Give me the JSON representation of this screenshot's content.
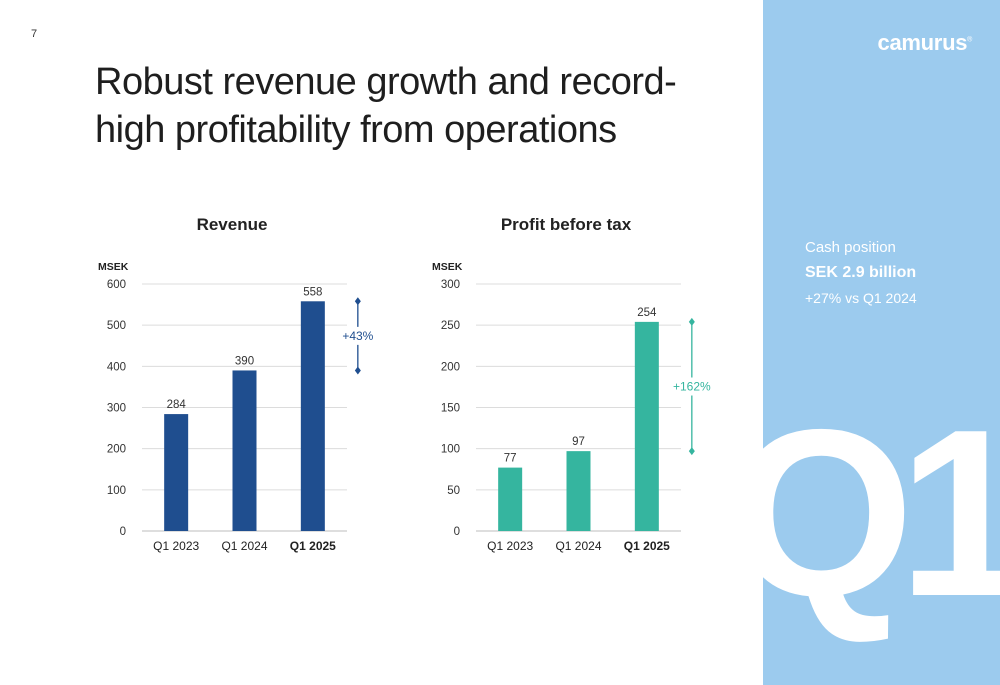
{
  "page_number": "7",
  "title": "Robust revenue growth and record-high profitability from operations",
  "logo_text": "camurus",
  "logo_mark": "®",
  "side_panel": {
    "cash_label": "Cash position",
    "cash_value": "SEK 2.9 billion",
    "cash_change": "+27% vs Q1 2024",
    "watermark": "Q1"
  },
  "colors": {
    "revenue_bar": "#1f4e8f",
    "profit_bar": "#35b59f",
    "panel": "#9ccbee"
  },
  "chart_data": [
    {
      "type": "bar",
      "title": "Revenue",
      "ylabel": "MSEK",
      "xlabel": "",
      "categories": [
        "Q1 2023",
        "Q1 2024",
        "Q1 2025"
      ],
      "bold_category": "Q1 2025",
      "values": [
        284,
        390,
        558
      ],
      "ylim": [
        0,
        600
      ],
      "yticks": [
        0,
        100,
        200,
        300,
        400,
        500,
        600
      ],
      "grid": true,
      "color": "#1f4e8f",
      "annotation": {
        "text": "+43%",
        "from": 390,
        "to": 558
      }
    },
    {
      "type": "bar",
      "title": "Profit before tax",
      "ylabel": "MSEK",
      "xlabel": "",
      "categories": [
        "Q1 2023",
        "Q1 2024",
        "Q1 2025"
      ],
      "bold_category": "Q1 2025",
      "values": [
        77,
        97,
        254
      ],
      "ylim": [
        0,
        300
      ],
      "yticks": [
        0,
        50,
        100,
        150,
        200,
        250,
        300
      ],
      "grid": true,
      "color": "#35b59f",
      "annotation": {
        "text": "+162%",
        "from": 97,
        "to": 254
      }
    }
  ]
}
